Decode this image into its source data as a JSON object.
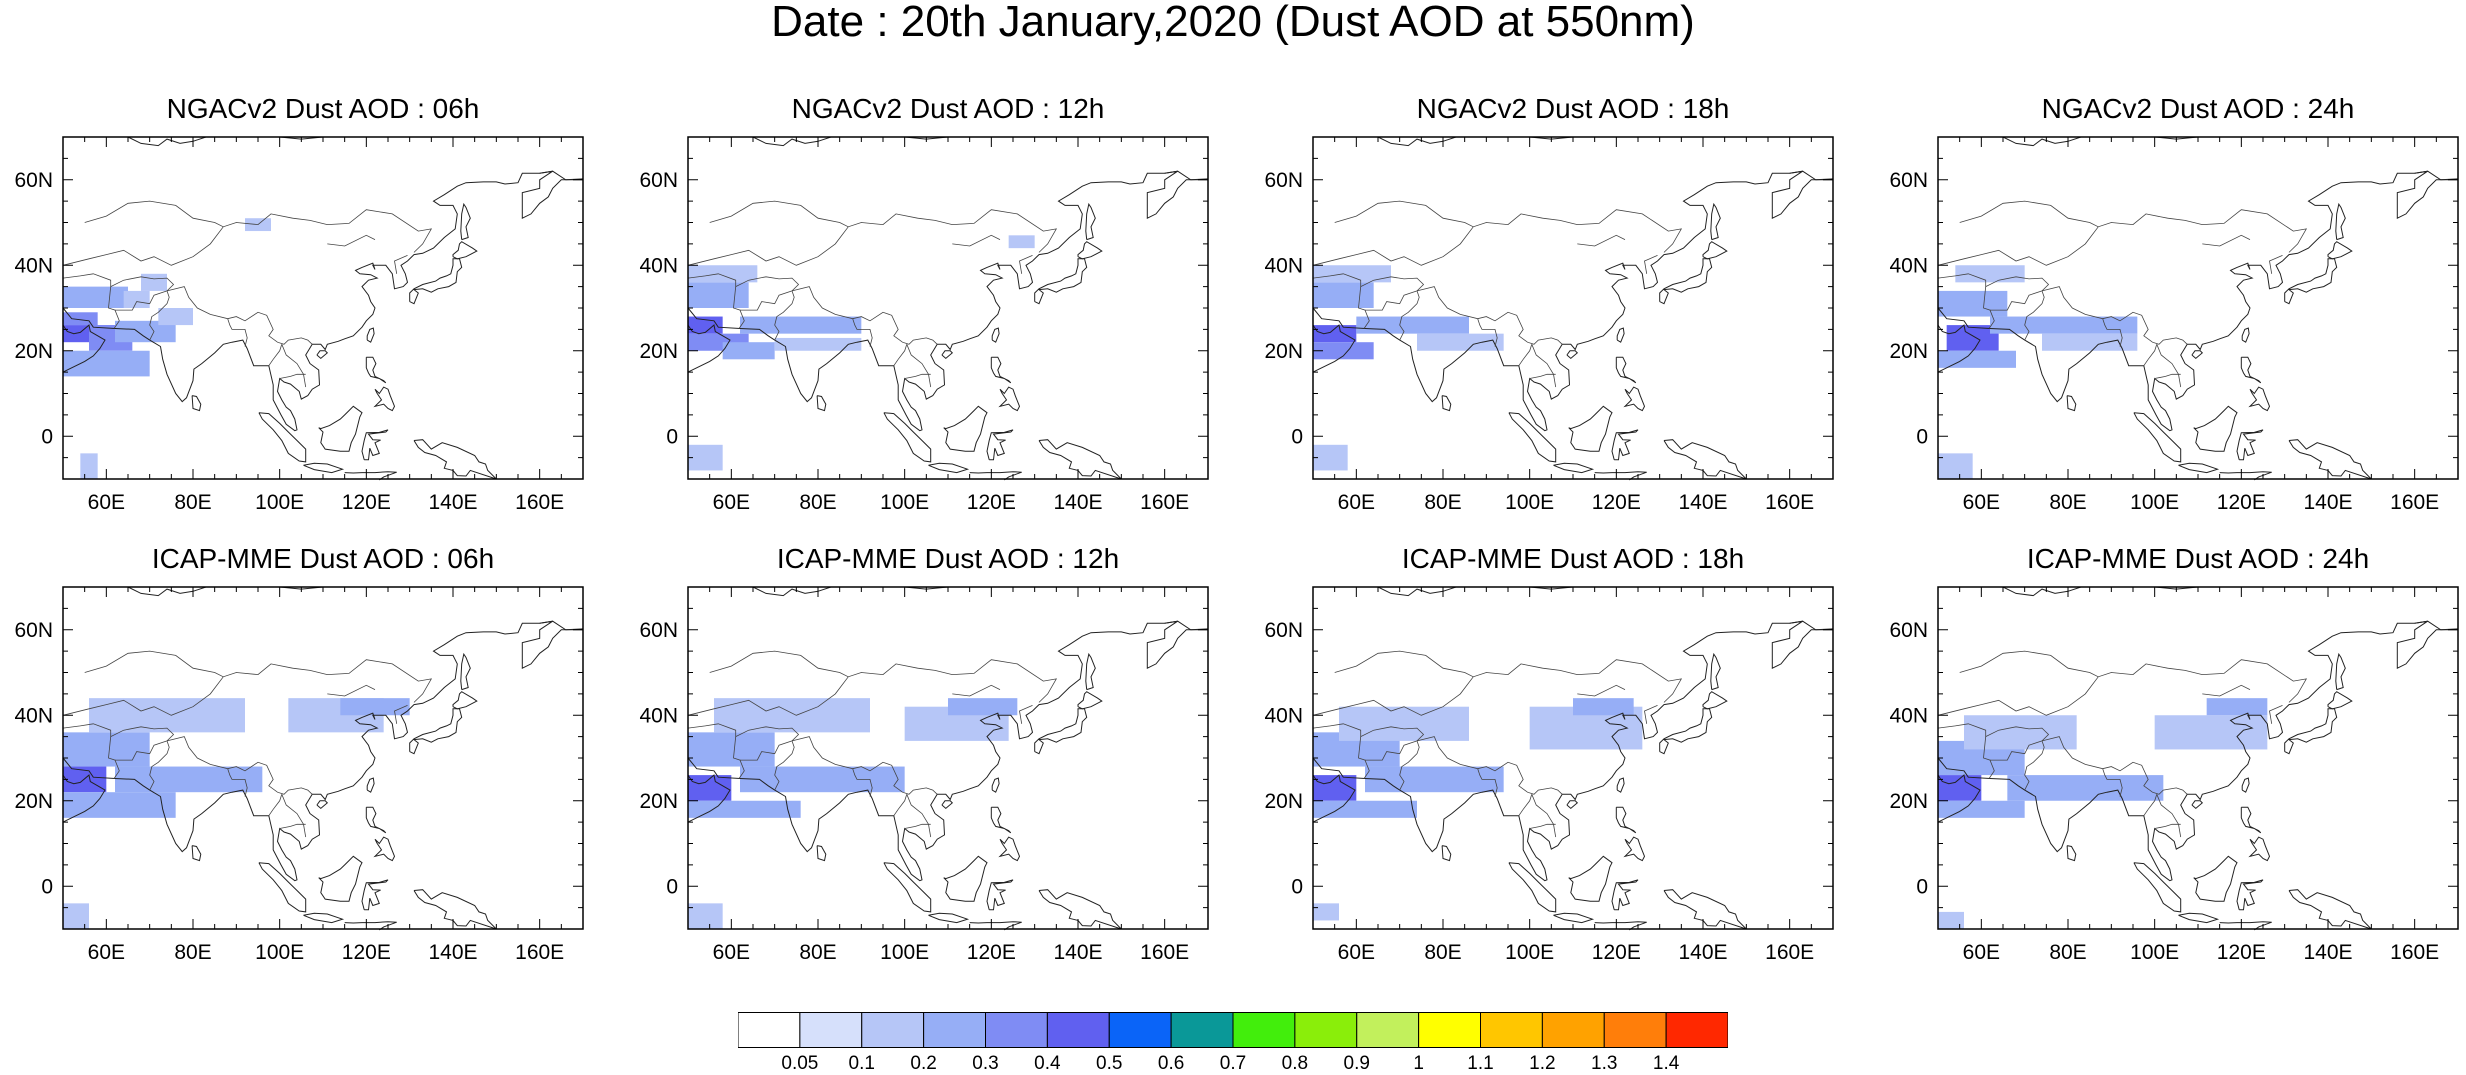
{
  "title": "Date : 20th January,2020 (Dust AOD at 550nm)",
  "axes": {
    "lon_range": [
      50,
      170
    ],
    "lat_range": [
      -10,
      70
    ],
    "x_ticks": [
      60,
      80,
      100,
      120,
      140,
      160
    ],
    "x_tick_labels": [
      "60E",
      "80E",
      "100E",
      "120E",
      "140E",
      "160E"
    ],
    "y_ticks": [
      0,
      20,
      40,
      60
    ],
    "y_tick_labels": [
      "0",
      "20N",
      "40N",
      "60N"
    ]
  },
  "panels": [
    {
      "title": "NGACv2 Dust AOD : 06h",
      "model": "NGACv2",
      "hour": "06h",
      "dust_cells": [
        [
          50,
          30,
          15,
          5,
          0.2
        ],
        [
          50,
          26,
          8,
          3,
          0.3
        ],
        [
          50,
          22,
          12,
          4,
          0.4
        ],
        [
          56,
          20,
          10,
          6,
          0.3
        ],
        [
          50,
          14,
          20,
          6,
          0.2
        ],
        [
          62,
          22,
          14,
          5,
          0.2
        ],
        [
          64,
          30,
          6,
          4,
          0.1
        ],
        [
          68,
          34,
          6,
          4,
          0.1
        ],
        [
          72,
          26,
          8,
          4,
          0.1
        ],
        [
          54,
          -10,
          4,
          6,
          0.1
        ],
        [
          92,
          48,
          6,
          3,
          0.1
        ]
      ]
    },
    {
      "title": "NGACv2 Dust AOD : 12h",
      "model": "NGACv2",
      "hour": "12h",
      "dust_cells": [
        [
          50,
          30,
          14,
          6,
          0.2
        ],
        [
          50,
          24,
          8,
          4,
          0.4
        ],
        [
          50,
          20,
          14,
          4,
          0.3
        ],
        [
          58,
          18,
          12,
          4,
          0.2
        ],
        [
          62,
          24,
          28,
          4,
          0.2
        ],
        [
          70,
          20,
          20,
          3,
          0.1
        ],
        [
          50,
          36,
          16,
          4,
          0.1
        ],
        [
          50,
          -8,
          8,
          6,
          0.1
        ],
        [
          124,
          44,
          6,
          3,
          0.1
        ]
      ]
    },
    {
      "title": "NGACv2 Dust AOD : 18h",
      "model": "NGACv2",
      "hour": "18h",
      "dust_cells": [
        [
          50,
          30,
          14,
          6,
          0.2
        ],
        [
          50,
          22,
          10,
          4,
          0.4
        ],
        [
          50,
          18,
          14,
          4,
          0.3
        ],
        [
          60,
          24,
          26,
          4,
          0.2
        ],
        [
          74,
          20,
          20,
          4,
          0.1
        ],
        [
          50,
          36,
          18,
          4,
          0.1
        ],
        [
          50,
          -8,
          8,
          6,
          0.1
        ]
      ]
    },
    {
      "title": "NGACv2 Dust AOD : 24h",
      "model": "NGACv2",
      "hour": "24h",
      "dust_cells": [
        [
          50,
          28,
          16,
          6,
          0.2
        ],
        [
          52,
          20,
          12,
          6,
          0.4
        ],
        [
          50,
          16,
          18,
          4,
          0.2
        ],
        [
          62,
          24,
          34,
          4,
          0.2
        ],
        [
          74,
          20,
          22,
          4,
          0.1
        ],
        [
          54,
          36,
          16,
          4,
          0.1
        ],
        [
          50,
          -10,
          8,
          6,
          0.1
        ]
      ]
    },
    {
      "title": "ICAP-MME Dust AOD : 06h",
      "model": "ICAP-MME",
      "hour": "06h",
      "dust_cells": [
        [
          50,
          28,
          20,
          8,
          0.2
        ],
        [
          50,
          22,
          10,
          6,
          0.4
        ],
        [
          50,
          16,
          26,
          6,
          0.2
        ],
        [
          56,
          36,
          36,
          8,
          0.1
        ],
        [
          62,
          22,
          34,
          6,
          0.2
        ],
        [
          102,
          36,
          22,
          8,
          0.1
        ],
        [
          114,
          40,
          16,
          4,
          0.2
        ],
        [
          50,
          -10,
          6,
          6,
          0.1
        ]
      ]
    },
    {
      "title": "ICAP-MME Dust AOD : 12h",
      "model": "ICAP-MME",
      "hour": "12h",
      "dust_cells": [
        [
          50,
          28,
          20,
          8,
          0.2
        ],
        [
          50,
          20,
          10,
          6,
          0.4
        ],
        [
          50,
          16,
          26,
          4,
          0.2
        ],
        [
          56,
          36,
          36,
          8,
          0.1
        ],
        [
          62,
          22,
          38,
          6,
          0.2
        ],
        [
          100,
          34,
          24,
          8,
          0.1
        ],
        [
          110,
          40,
          16,
          4,
          0.2
        ],
        [
          50,
          -10,
          8,
          6,
          0.1
        ]
      ]
    },
    {
      "title": "ICAP-MME Dust AOD : 18h",
      "model": "ICAP-MME",
      "hour": "18h",
      "dust_cells": [
        [
          50,
          28,
          20,
          8,
          0.2
        ],
        [
          50,
          20,
          10,
          6,
          0.4
        ],
        [
          50,
          16,
          24,
          4,
          0.2
        ],
        [
          56,
          34,
          30,
          8,
          0.1
        ],
        [
          62,
          22,
          32,
          6,
          0.2
        ],
        [
          100,
          32,
          26,
          10,
          0.1
        ],
        [
          110,
          40,
          14,
          4,
          0.2
        ],
        [
          50,
          -8,
          6,
          4,
          0.1
        ]
      ]
    },
    {
      "title": "ICAP-MME Dust AOD : 24h",
      "model": "ICAP-MME",
      "hour": "24h",
      "dust_cells": [
        [
          50,
          26,
          20,
          8,
          0.2
        ],
        [
          50,
          20,
          10,
          6,
          0.4
        ],
        [
          50,
          16,
          20,
          4,
          0.2
        ],
        [
          56,
          32,
          26,
          8,
          0.1
        ],
        [
          66,
          20,
          36,
          6,
          0.2
        ],
        [
          100,
          32,
          26,
          8,
          0.1
        ],
        [
          112,
          40,
          14,
          4,
          0.2
        ],
        [
          50,
          -10,
          6,
          4,
          0.1
        ]
      ]
    }
  ],
  "colorbar": {
    "boundaries": [
      "0.05",
      "0.1",
      "0.2",
      "0.3",
      "0.4",
      "0.5",
      "0.6",
      "0.7",
      "0.8",
      "0.9",
      "1",
      "1.1",
      "1.2",
      "1.3",
      "1.4"
    ],
    "colors": [
      "#ffffff",
      "#d6e0fb",
      "#b6c6f7",
      "#96aef6",
      "#7f8cf4",
      "#6060f0",
      "#0a64f8",
      "#0a9898",
      "#42ee0c",
      "#8aee0a",
      "#c2f05c",
      "#ffff00",
      "#ffc600",
      "#ffa200",
      "#ff7e0a",
      "#ff2800"
    ]
  }
}
